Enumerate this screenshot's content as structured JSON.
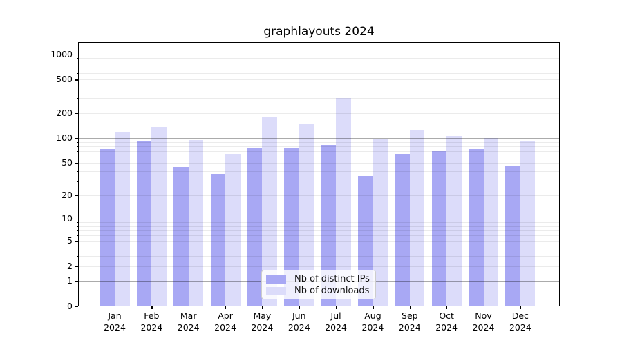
{
  "chart_data": {
    "type": "bar",
    "title": "graphlayouts 2024",
    "categories": [
      "Jan 2024",
      "Feb 2024",
      "Mar 2024",
      "Apr 2024",
      "May 2024",
      "Jun 2024",
      "Jul 2024",
      "Aug 2024",
      "Sep 2024",
      "Oct 2024",
      "Nov 2024",
      "Dec 2024"
    ],
    "series": [
      {
        "name": "Nb of distinct IPs",
        "color": "#a8a8f4",
        "values": [
          73,
          93,
          45,
          37,
          75,
          77,
          83,
          35,
          64,
          69,
          74,
          46
        ]
      },
      {
        "name": "Nb of downloads",
        "color": "#dcdcfa",
        "values": [
          116,
          136,
          95,
          64,
          180,
          148,
          300,
          99,
          124,
          106,
          101,
          91
        ]
      }
    ],
    "xlabel": "",
    "ylabel": "",
    "y_scale": "log1p",
    "y_ticks": [
      0,
      1,
      2,
      5,
      10,
      20,
      50,
      100,
      200,
      500,
      1000
    ],
    "y_major_gridlines": [
      1,
      10,
      100,
      1000
    ],
    "ylim": [
      0,
      1400
    ],
    "grid": true,
    "legend_position": "lower center",
    "background": "#ffffff"
  }
}
